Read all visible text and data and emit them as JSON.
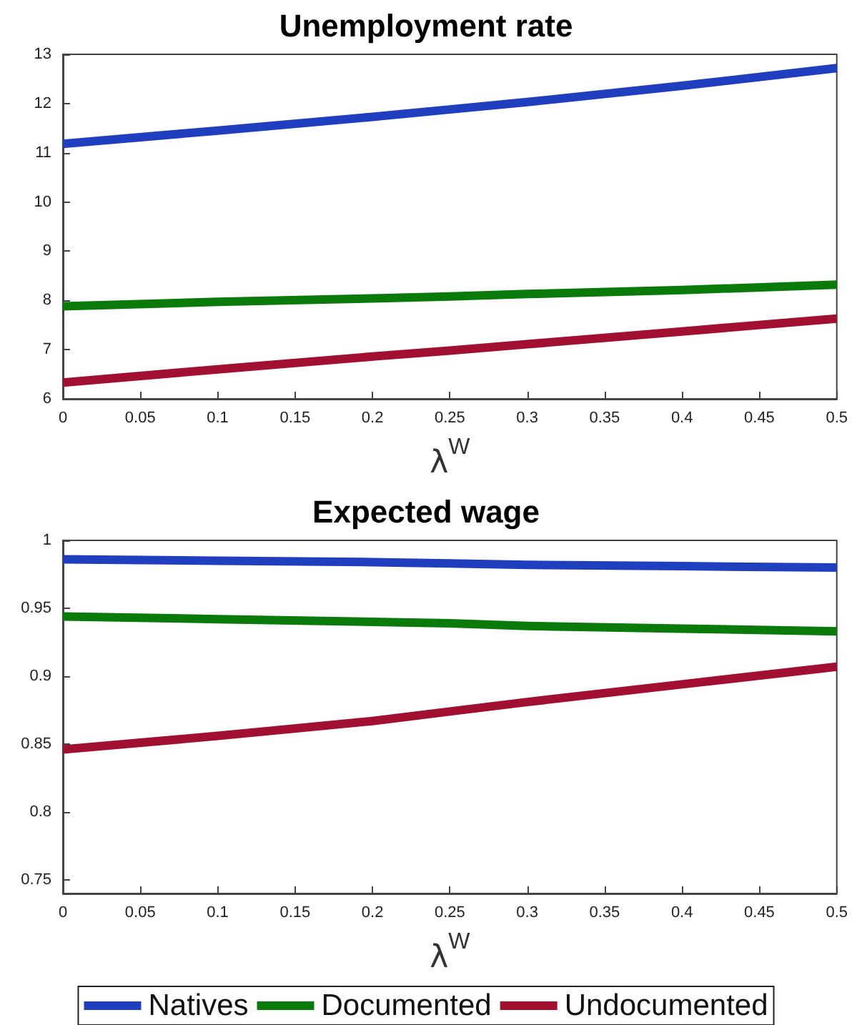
{
  "chart_data": [
    {
      "type": "line",
      "title": "Unemployment rate",
      "xlabel": "λ$^{W}$",
      "x": [
        0,
        0.1,
        0.2,
        0.25,
        0.3,
        0.4,
        0.5
      ],
      "xlim": [
        0,
        0.5
      ],
      "xticks": [
        0,
        0.05,
        0.1,
        0.15,
        0.2,
        0.25,
        0.3,
        0.35,
        0.4,
        0.45,
        0.5
      ],
      "ylim": [
        6,
        13
      ],
      "yticks": [
        6,
        7,
        8,
        9,
        10,
        11,
        12,
        13
      ],
      "grid": false,
      "legend": false,
      "marker": "none",
      "line_style": "solid",
      "series": [
        {
          "color": "#1f3fbf",
          "values": [
            11.18,
            11.45,
            11.73,
            11.88,
            12.03,
            12.36,
            12.72
          ]
        },
        {
          "color": "#0a7a0a",
          "values": [
            7.88,
            7.97,
            8.04,
            8.08,
            8.13,
            8.21,
            8.32
          ]
        },
        {
          "color": "#a11030",
          "values": [
            6.33,
            6.6,
            6.86,
            6.98,
            7.11,
            7.37,
            7.63
          ]
        }
      ]
    },
    {
      "type": "line",
      "title": "Expected wage",
      "xlabel": "λ$^{W}$",
      "x": [
        0,
        0.1,
        0.2,
        0.25,
        0.3,
        0.4,
        0.5
      ],
      "xlim": [
        0,
        0.5
      ],
      "xticks": [
        0,
        0.05,
        0.1,
        0.15,
        0.2,
        0.25,
        0.3,
        0.35,
        0.4,
        0.45,
        0.5
      ],
      "ylim": [
        0.74,
        1
      ],
      "yticks": [
        0.75,
        0.8,
        0.85,
        0.9,
        0.95,
        1
      ],
      "grid": false,
      "legend": "bottom",
      "marker": "none",
      "line_style": "solid",
      "series": [
        {
          "name": "Natives",
          "color": "#1f3fbf",
          "values": [
            0.986,
            0.985,
            0.984,
            0.983,
            0.982,
            0.981,
            0.98
          ]
        },
        {
          "name": "Documented",
          "color": "#0a7a0a",
          "values": [
            0.944,
            0.942,
            0.94,
            0.939,
            0.937,
            0.935,
            0.933
          ]
        },
        {
          "name": "Undocumented",
          "color": "#a11030",
          "values": [
            0.846,
            0.856,
            0.867,
            0.874,
            0.881,
            0.894,
            0.907
          ]
        }
      ]
    }
  ]
}
